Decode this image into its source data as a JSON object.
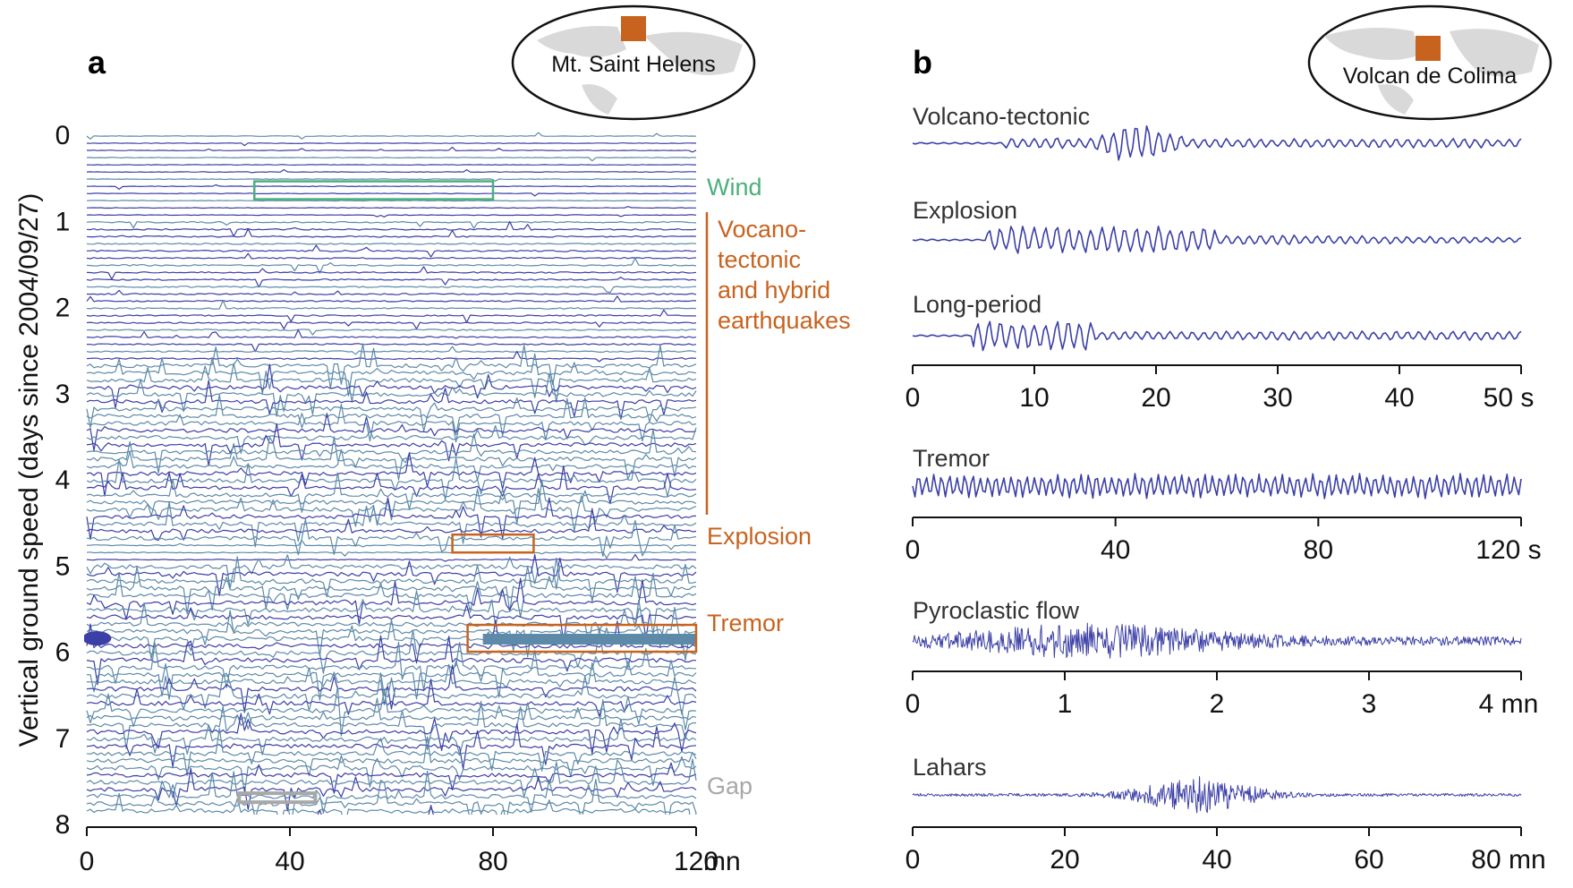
{
  "colors": {
    "trace_dark": "#3b3fa6",
    "trace_light": "#5d8aa8",
    "wind_box": "#4caf7d",
    "event_orange": "#c7631f",
    "gap_gray": "#a8a8a8",
    "text": "#111111",
    "subtitle": "#333333",
    "land": "#d9d9d9"
  },
  "panel_a": {
    "letter": "a",
    "map_label": "Mt. Saint Helens",
    "ylabel": "Vertical ground speed (days since 2004/09/27)",
    "y_ticks": [
      "0",
      "1",
      "2",
      "3",
      "4",
      "5",
      "6",
      "7",
      "8"
    ],
    "x_ticks": [
      "0",
      "40",
      "80",
      "120"
    ],
    "x_unit": "mn",
    "annotations": {
      "wind": "Wind",
      "vt_line1": "Vocano-",
      "vt_line2": "tectonic",
      "vt_line3": "and hybrid",
      "vt_line4": "earthquakes",
      "explosion": "Explosion",
      "tremor": "Tremor",
      "gap": "Gap"
    }
  },
  "panel_b": {
    "letter": "b",
    "map_label": "Volcan de Colima",
    "signals": [
      {
        "label": "Volcano-tectonic",
        "axis_ticks": [
          "0",
          "10",
          "20",
          "30",
          "40"
        ],
        "axis_unit": "50 s"
      },
      {
        "label": "Explosion"
      },
      {
        "label": "Long-period"
      },
      {
        "label": "Tremor",
        "axis_ticks": [
          "0",
          "40",
          "80"
        ],
        "axis_unit": "120 s"
      },
      {
        "label": "Pyroclastic flow",
        "axis_ticks": [
          "0",
          "1",
          "2",
          "3"
        ],
        "axis_unit": "4 mn"
      },
      {
        "label": "Lahars",
        "axis_ticks": [
          "0",
          "20",
          "40",
          "60"
        ],
        "axis_unit": "80 mn"
      }
    ]
  },
  "chart_data": [
    {
      "type": "line",
      "panel": "a",
      "description_of_axes": "seismogram record section",
      "x": [
        0,
        120
      ],
      "xlim": [
        0,
        120
      ],
      "ylim": [
        0,
        8
      ],
      "xlabel": "mn",
      "ylabel": "Vertical ground speed (days since 2004/09/27)",
      "x_ticks": [
        0,
        40,
        80,
        120
      ],
      "y_ticks": [
        0,
        1,
        2,
        3,
        4,
        5,
        6,
        7,
        8
      ],
      "annotations": [
        {
          "label": "Wind",
          "day": 0.65,
          "x_range": [
            33,
            80
          ]
        },
        {
          "label": "Vocano-tectonic and hybrid earthquakes",
          "day_range": [
            0.95,
            4.6
          ]
        },
        {
          "label": "Explosion",
          "day": 4.75,
          "x_range": [
            72,
            88
          ]
        },
        {
          "label": "Tremor",
          "day": 5.85,
          "x_range": [
            75,
            120
          ]
        },
        {
          "label": "Gap",
          "day": 7.7,
          "x_range": [
            30,
            45
          ]
        }
      ]
    },
    {
      "type": "line",
      "panel": "b",
      "series": [
        {
          "name": "Volcano-tectonic",
          "xlim": [
            0,
            50
          ],
          "x_unit": "s",
          "x_ticks": [
            0,
            10,
            20,
            30,
            40,
            50
          ]
        },
        {
          "name": "Explosion",
          "xlim": [
            0,
            50
          ],
          "x_unit": "s",
          "x_ticks": [
            0,
            10,
            20,
            30,
            40,
            50
          ]
        },
        {
          "name": "Long-period",
          "xlim": [
            0,
            50
          ],
          "x_unit": "s",
          "x_ticks": [
            0,
            10,
            20,
            30,
            40,
            50
          ]
        },
        {
          "name": "Tremor",
          "xlim": [
            0,
            120
          ],
          "x_unit": "s",
          "x_ticks": [
            0,
            40,
            80,
            120
          ]
        },
        {
          "name": "Pyroclastic flow",
          "xlim": [
            0,
            4
          ],
          "x_unit": "mn",
          "x_ticks": [
            0,
            1,
            2,
            3,
            4
          ]
        },
        {
          "name": "Lahars",
          "xlim": [
            0,
            80
          ],
          "x_unit": "mn",
          "x_ticks": [
            0,
            20,
            40,
            60,
            80
          ]
        }
      ]
    }
  ]
}
